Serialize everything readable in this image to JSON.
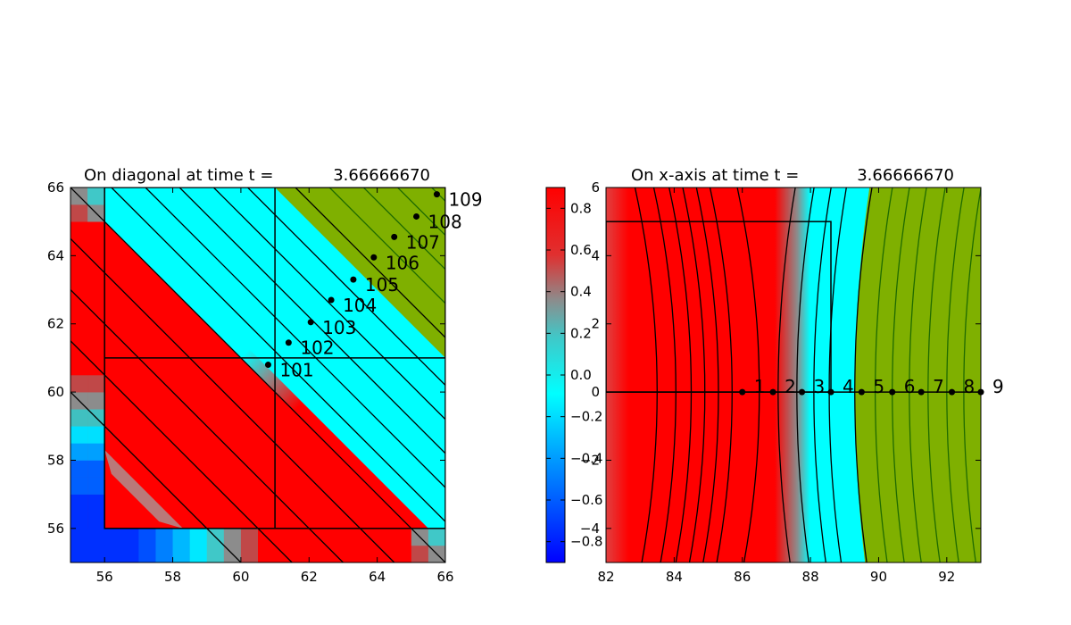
{
  "chart_data": [
    {
      "type": "heatmap",
      "title_prefix": "On diagonal at time t =",
      "title_value": "3.66666670",
      "xlim": [
        55,
        66
      ],
      "ylim": [
        55,
        66
      ],
      "x_ticks": [
        "56",
        "58",
        "60",
        "62",
        "64",
        "66"
      ],
      "x_tick_values": [
        56,
        58,
        60,
        62,
        64,
        66
      ],
      "y_ticks": [
        "56",
        "58",
        "60",
        "62",
        "64",
        "66"
      ],
      "y_tick_values": [
        56,
        58,
        60,
        62,
        64,
        66
      ],
      "grid": false,
      "points": [
        {
          "label": "101",
          "x": 60.8,
          "y": 60.8
        },
        {
          "label": "102",
          "x": 61.4,
          "y": 61.45
        },
        {
          "label": "103",
          "x": 62.05,
          "y": 62.05
        },
        {
          "label": "104",
          "x": 62.65,
          "y": 62.7
        },
        {
          "label": "105",
          "x": 63.3,
          "y": 63.3
        },
        {
          "label": "106",
          "x": 63.9,
          "y": 63.95
        },
        {
          "label": "107",
          "x": 64.5,
          "y": 64.55
        },
        {
          "label": "108",
          "x": 65.15,
          "y": 65.15
        },
        {
          "label": "109",
          "x": 65.75,
          "y": 65.8
        }
      ],
      "regions": {
        "red": "#ff0000",
        "cyan": "#00ffff",
        "green": "#7fb000",
        "gray": "#8c8c8c",
        "blue": "#0030ff"
      },
      "diagonal_interface": 121.5,
      "green_interface": 127.0,
      "contour_levels": [
        115,
        116.5,
        118,
        119.5,
        121,
        122.2,
        123.2,
        124.2,
        125.2,
        126.2,
        127.6,
        128.6,
        129.6,
        130.6,
        131.6
      ],
      "green_contours": [
        128.6,
        129.6,
        130.6,
        131.6
      ],
      "boxes": [
        {
          "x0": 56,
          "y0": 56,
          "x1": 66,
          "y1": 66
        },
        {
          "x0": 61,
          "y0": 56,
          "x1": 61,
          "y1": 66
        },
        {
          "x0": 56,
          "y0": 61,
          "x1": 66,
          "y1": 61
        }
      ]
    },
    {
      "type": "heatmap",
      "title_prefix": "On x-axis at time t =",
      "title_value": "3.66666670",
      "xlim": [
        82,
        93
      ],
      "ylim": [
        -5,
        6
      ],
      "x_ticks": [
        "82",
        "84",
        "86",
        "88",
        "90",
        "92"
      ],
      "x_tick_values": [
        82,
        84,
        86,
        88,
        90,
        92
      ],
      "y_ticks": [
        "−4",
        "−2",
        "0",
        "2",
        "4",
        "6"
      ],
      "y_tick_values": [
        -4,
        -2,
        0,
        2,
        4,
        6
      ],
      "grid": false,
      "points": [
        {
          "label": "1",
          "x": 86.0,
          "y": 0
        },
        {
          "label": "2",
          "x": 86.9,
          "y": 0
        },
        {
          "label": "3",
          "x": 87.75,
          "y": 0
        },
        {
          "label": "4",
          "x": 88.6,
          "y": 0
        },
        {
          "label": "5",
          "x": 89.5,
          "y": 0
        },
        {
          "label": "6",
          "x": 90.4,
          "y": 0
        },
        {
          "label": "7",
          "x": 91.25,
          "y": 0
        },
        {
          "label": "8",
          "x": 92.15,
          "y": 0
        },
        {
          "label": "9",
          "x": 93.0,
          "y": 0
        }
      ],
      "red_until": 86.0,
      "cyan_from": 86.6,
      "green_from": 89.3,
      "contour_x": [
        83.5,
        84.05,
        84.5,
        84.9,
        85.3,
        85.7,
        86.5,
        87.05,
        87.6,
        88.1,
        88.55,
        89.3,
        89.9,
        90.4,
        90.9,
        91.45,
        92.0,
        92.5
      ],
      "boxes": [
        {
          "x0": 82,
          "y0": 0,
          "x1": 88.6,
          "y1": 5
        },
        {
          "x0": 82,
          "y0": 0,
          "x1": 93,
          "y1": 0
        }
      ]
    }
  ],
  "colorbar": {
    "ticks": [
      "0.8",
      "0.6",
      "0.4",
      "0.2",
      "0.0",
      "−0.2",
      "−0.4",
      "−0.6",
      "−0.8"
    ],
    "tick_values": [
      0.8,
      0.6,
      0.4,
      0.2,
      0.0,
      -0.2,
      -0.4,
      -0.6,
      -0.8
    ],
    "min": -0.9,
    "max": 0.9,
    "colors": [
      "#0000ff",
      "#00b0ff",
      "#00ffff",
      "#8c8c8c",
      "#ff2a2a",
      "#ff0000"
    ]
  }
}
